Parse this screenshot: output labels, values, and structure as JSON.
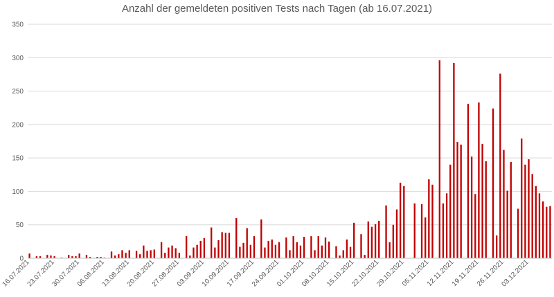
{
  "chart_data": {
    "type": "bar",
    "title": "Anzahl der gemeldeten positiven Tests nach Tagen (ab 16.07.2021)",
    "xlabel": "",
    "ylabel": "",
    "ylim": [
      0,
      350
    ],
    "yticks": [
      0,
      50,
      100,
      150,
      200,
      250,
      300,
      350
    ],
    "grid": true,
    "legend": "none",
    "bar_color": "#c00000",
    "start_date": "16.07.2021",
    "xtick_labels": [
      "16.07.2021",
      "23.07.2021",
      "30.07.2021",
      "06.08.2021",
      "13.08.2021",
      "20.08.2021",
      "27.08.2021",
      "03.09.2021",
      "10.09.2021",
      "17.09.2021",
      "24.09.2021",
      "01.10.2021",
      "08.10.2021",
      "15.10.2021",
      "22.10.2021",
      "29.10.2021",
      "05.11.2021",
      "12.11.2021",
      "19.11.2021",
      "26.11.2021",
      "03.12.2021"
    ],
    "values": [
      7,
      0,
      3,
      3,
      0,
      5,
      4,
      3,
      0,
      1,
      0,
      5,
      3,
      3,
      7,
      0,
      5,
      2,
      0,
      2,
      2,
      1,
      0,
      10,
      4,
      6,
      12,
      8,
      12,
      0,
      11,
      6,
      19,
      11,
      12,
      13,
      0,
      24,
      8,
      16,
      19,
      15,
      8,
      0,
      33,
      4,
      16,
      20,
      26,
      30,
      0,
      46,
      16,
      27,
      39,
      38,
      38,
      0,
      60,
      17,
      23,
      45,
      20,
      33,
      0,
      58,
      16,
      26,
      28,
      20,
      24,
      0,
      31,
      12,
      33,
      24,
      19,
      32,
      0,
      33,
      12,
      33,
      19,
      31,
      25,
      0,
      18,
      4,
      12,
      28,
      17,
      53,
      0,
      36,
      5,
      55,
      47,
      51,
      56,
      0,
      79,
      24,
      50,
      73,
      113,
      108,
      0,
      0,
      82,
      0,
      81,
      61,
      118,
      110,
      0,
      296,
      82,
      97,
      140,
      292,
      174,
      170,
      0,
      231,
      152,
      96,
      233,
      171,
      145,
      0,
      224,
      34,
      276,
      162,
      101,
      144,
      0,
      74,
      179,
      140,
      148,
      126,
      108,
      97,
      85,
      77,
      78
    ]
  }
}
